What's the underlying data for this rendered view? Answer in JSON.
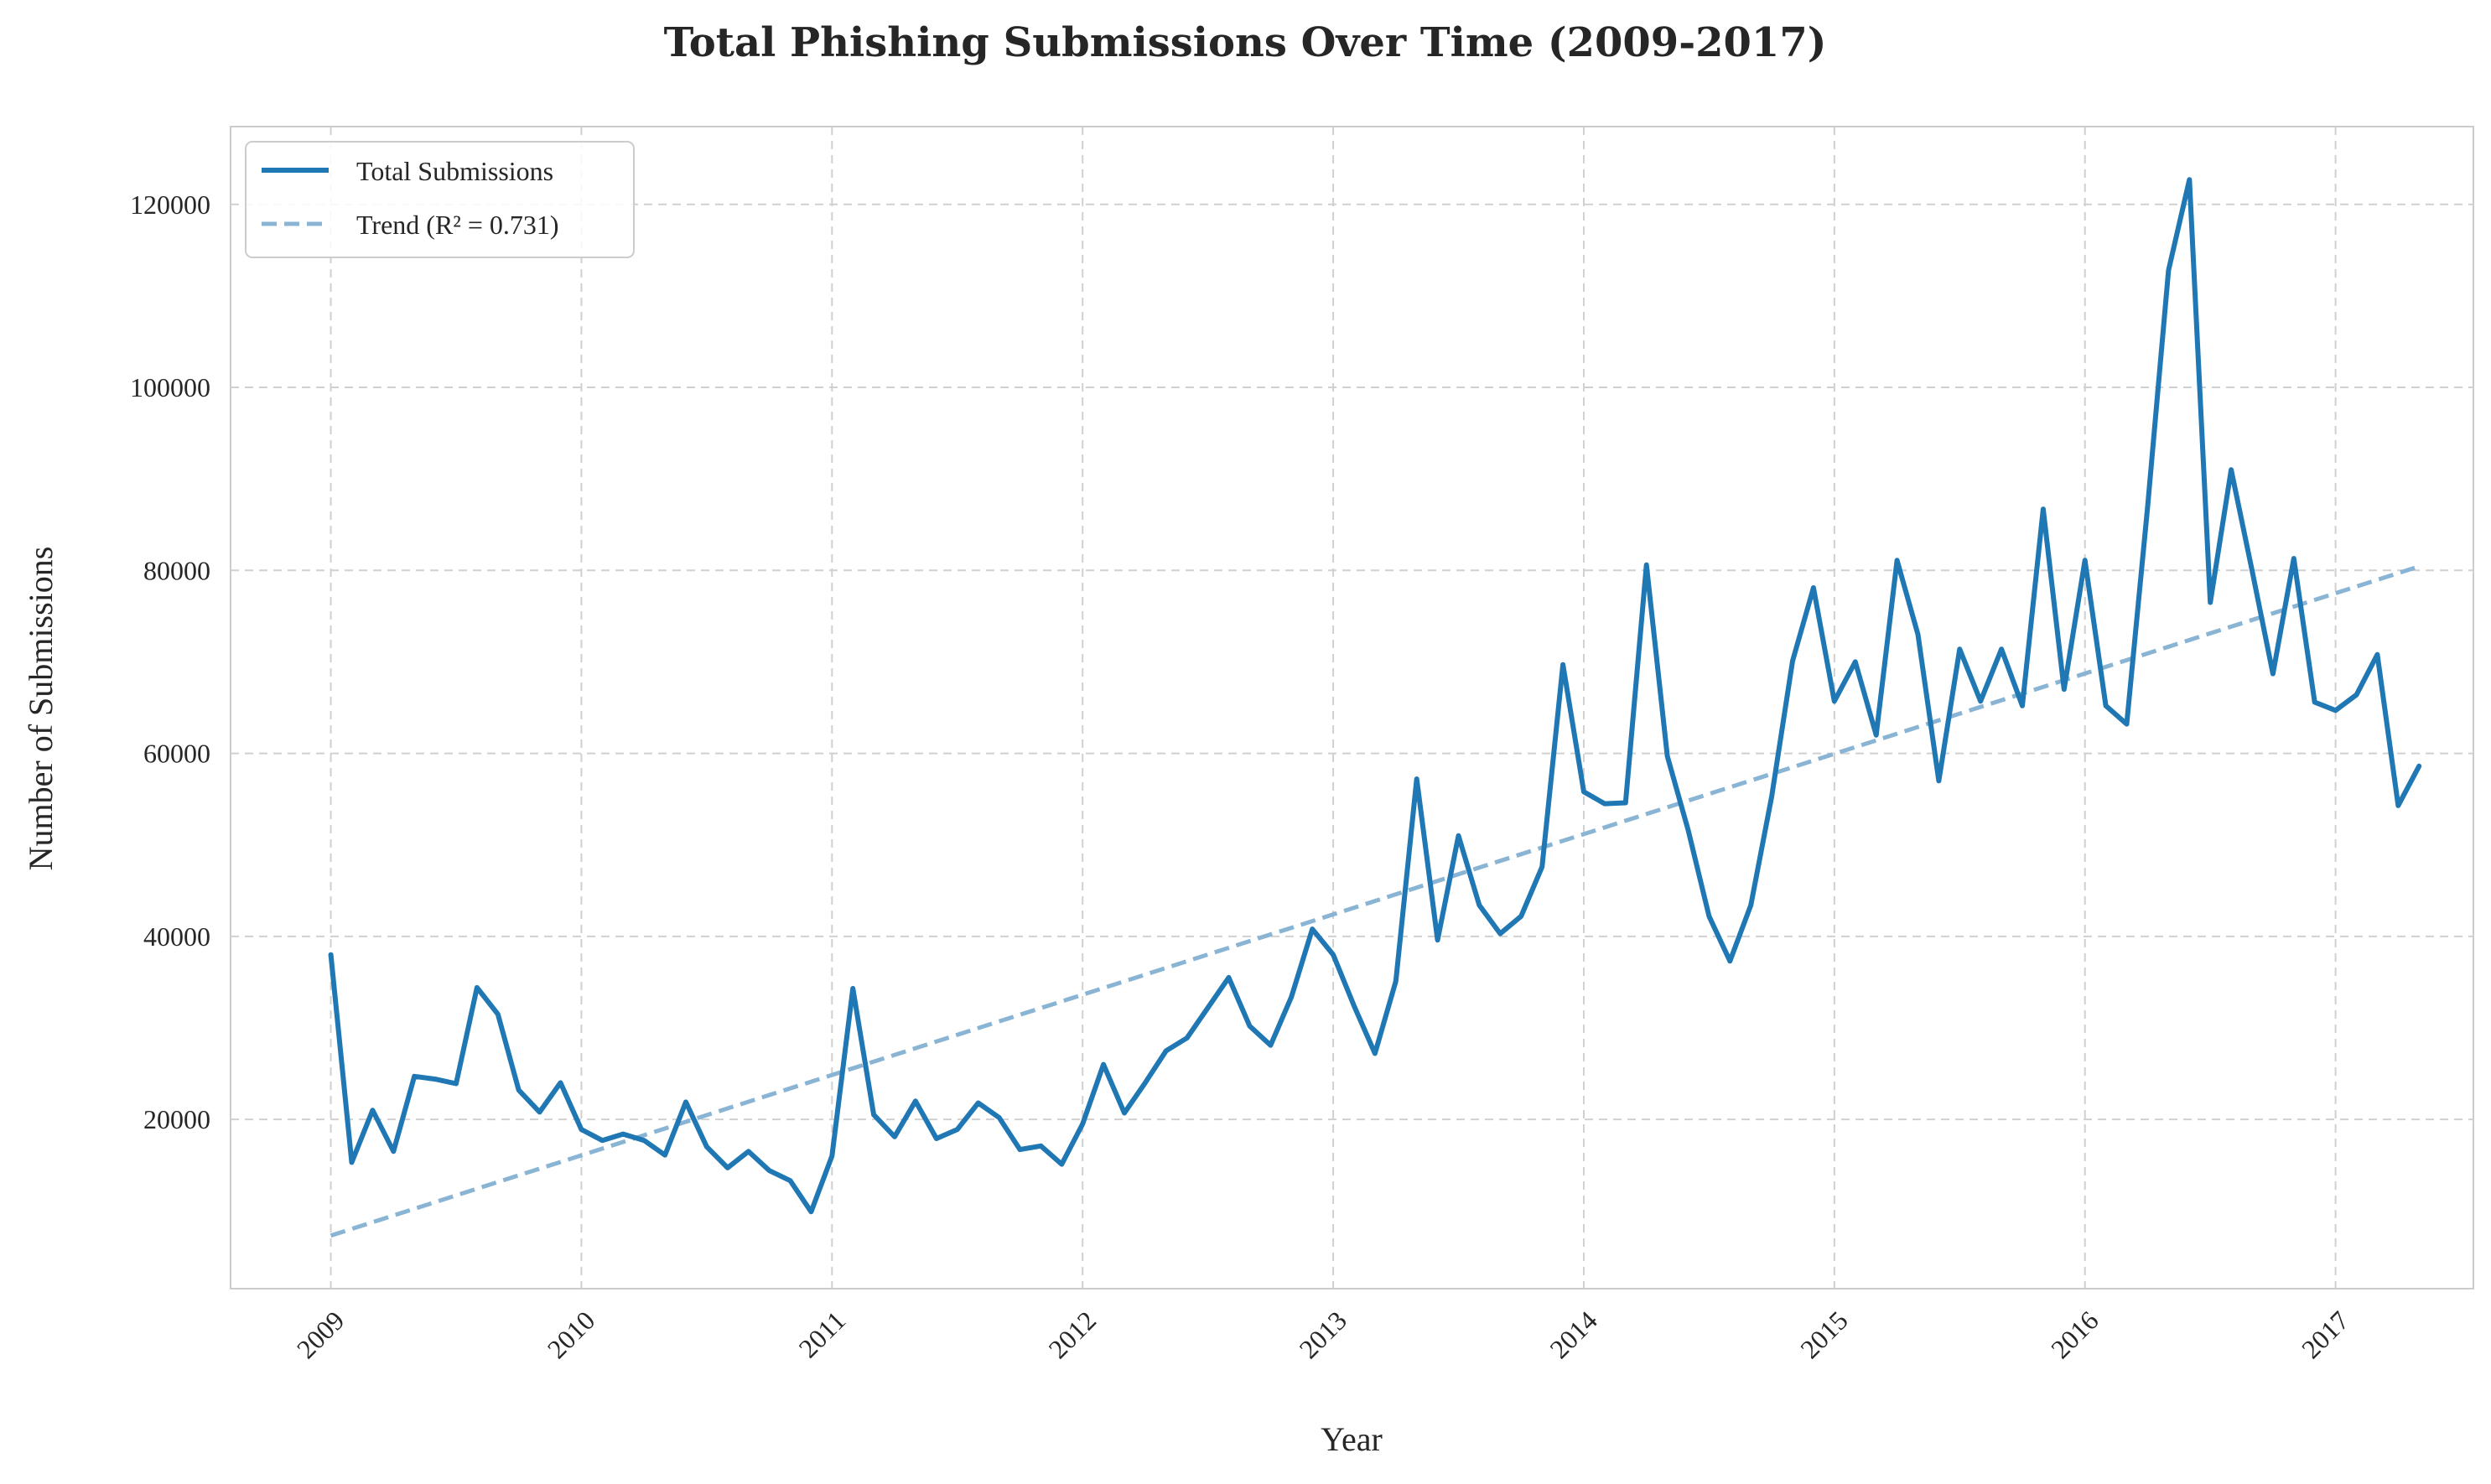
{
  "chart_data": {
    "type": "line",
    "title": "Total Phishing Submissions Over Time (2009-2017)",
    "xlabel": "Year",
    "ylabel": "Number of Submissions",
    "x_ticks": [
      "2009",
      "2010",
      "2011",
      "2012",
      "2013",
      "2014",
      "2015",
      "2016",
      "2017"
    ],
    "y_ticks": [
      20000,
      40000,
      60000,
      80000,
      100000,
      120000
    ],
    "xlim": [
      2008.6,
      2017.55
    ],
    "ylim": [
      1500,
      128500
    ],
    "grid": true,
    "legend_position": "top-left",
    "series": [
      {
        "name": "Total Submissions",
        "color": "#1f77b4",
        "style": "solid",
        "start_year": 2009,
        "frequency": "monthly",
        "values": [
          38000,
          15300,
          21000,
          16500,
          24700,
          24400,
          23900,
          34400,
          31500,
          23200,
          20800,
          24000,
          18900,
          17700,
          18400,
          17700,
          16100,
          21900,
          17000,
          14700,
          16500,
          14400,
          13300,
          9900,
          16000,
          34300,
          20500,
          18100,
          22000,
          17900,
          18900,
          21800,
          20200,
          16700,
          17100,
          15100,
          19500,
          26000,
          20700,
          24000,
          27500,
          28900,
          32200,
          35500,
          30200,
          28100,
          33400,
          40800,
          38000,
          32400,
          27200,
          35100,
          57200,
          39600,
          51000,
          43400,
          40300,
          42200,
          47600,
          69700,
          55800,
          54500,
          54600,
          80600,
          59700,
          51600,
          42200,
          37300,
          43400,
          55300,
          70100,
          78100,
          65700,
          70000,
          62000,
          81100,
          73000,
          57000,
          71400,
          65700,
          71400,
          65200,
          86700,
          67000,
          81100,
          65200,
          63200,
          87000,
          112800,
          122700,
          76500,
          91000,
          80000,
          68700,
          81300,
          65600,
          64700,
          66400,
          70800,
          54300,
          58600
        ]
      },
      {
        "name": "Trend (R² = 0.731)",
        "color": "#8ab4d4",
        "style": "dashed",
        "x": [
          2009,
          2017.33
        ],
        "values": [
          7300,
          80400
        ]
      }
    ]
  }
}
